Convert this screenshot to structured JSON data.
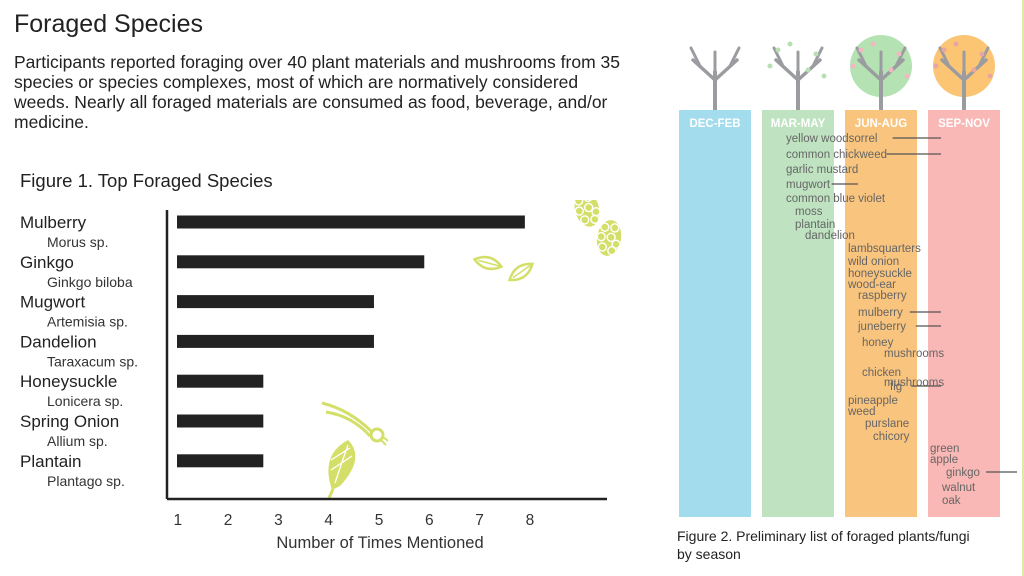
{
  "page": {
    "title": "Foraged Species",
    "intro": "Participants reported foraging over 40 plant materials and mushrooms from 35 species or species complexes, most of which are normatively considered weeds.  Nearly all foraged materials are consumed as food, beverage, and/or medicine."
  },
  "chart_data": [
    {
      "type": "bar",
      "orientation": "horizontal",
      "title": "Figure 1. Top Foraged Species",
      "xlabel": "Number of Times Mentioned",
      "ylabel": "",
      "xlim": [
        0,
        8.8
      ],
      "xticks": [
        "1",
        "2",
        "3",
        "4",
        "5",
        "6",
        "7",
        "8"
      ],
      "grid": false,
      "categories": [
        "Mulberry",
        "Ginkgo",
        "Mugwort",
        "Dandelion",
        "Honeysuckle",
        "Spring Onion",
        "Plantain"
      ],
      "scientific_names": [
        "Morus sp.",
        "Ginkgo biloba",
        "Artemisia sp.",
        "Taraxacum sp.",
        "Lonicera sp.",
        "Allium sp.",
        "Plantago sp."
      ],
      "values": [
        7.9,
        5.9,
        4.9,
        4.9,
        2.7,
        2.7,
        2.7
      ],
      "bar_color": "#222222",
      "decor_color": "#d4df6a"
    },
    {
      "type": "table",
      "caption": "Figure 2. Preliminary list of foraged plants/fungi by season",
      "seasons": [
        {
          "label": "DEC-FEB",
          "color": "#a3dcec",
          "tree": "bare"
        },
        {
          "label": "MAR-MAY",
          "color": "#bfe3c0",
          "tree": "budding"
        },
        {
          "label": "JUN-AUG",
          "color": "#f9c47d",
          "tree": "green"
        },
        {
          "label": "SEP-NOV",
          "color": "#f9b8b6",
          "tree": "orange"
        }
      ],
      "crown_colors": {
        "green": "#b5e2b3",
        "orange": "#fbc574"
      },
      "trunk_color": "#9a9ca0",
      "item_color": "#666666",
      "items": [
        {
          "text": "yellow woodsorrel",
          "season_range": [
            "MAR-MAY",
            "SEP-NOV"
          ]
        },
        {
          "text": "common chickweed",
          "season_range": [
            "MAR-MAY",
            "SEP-NOV"
          ]
        },
        {
          "text": "garlic mustard",
          "season_range": [
            "MAR-MAY",
            "JUN-AUG"
          ]
        },
        {
          "text": "mugwort",
          "season_range": [
            "MAR-MAY",
            "JUN-AUG"
          ]
        },
        {
          "text": "common blue violet",
          "season_range": [
            "MAR-MAY",
            "MAR-MAY"
          ]
        },
        {
          "text": "moss",
          "season_range": [
            "MAR-MAY",
            "MAR-MAY"
          ]
        },
        {
          "text": "plantain",
          "season_range": [
            "MAR-MAY",
            "MAR-MAY"
          ]
        },
        {
          "text": "dandelion",
          "season_range": [
            "MAR-MAY",
            "JUN-AUG"
          ]
        },
        {
          "text": "lambsquarters",
          "season_range": [
            "JUN-AUG",
            "JUN-AUG"
          ]
        },
        {
          "text": "wild onion",
          "season_range": [
            "JUN-AUG",
            "JUN-AUG"
          ]
        },
        {
          "text": "honeysuckle",
          "season_range": [
            "JUN-AUG",
            "JUN-AUG"
          ]
        },
        {
          "text": "wood-ear",
          "season_range": [
            "JUN-AUG",
            "JUN-AUG"
          ]
        },
        {
          "text": "raspberry",
          "season_range": [
            "JUN-AUG",
            "JUN-AUG"
          ]
        },
        {
          "text": "mulberry",
          "season_range": [
            "JUN-AUG",
            "SEP-NOV"
          ]
        },
        {
          "text": "juneberry",
          "season_range": [
            "JUN-AUG",
            "SEP-NOV"
          ]
        },
        {
          "text": "honey mushrooms",
          "season_range": [
            "JUN-AUG",
            "JUN-AUG"
          ]
        },
        {
          "text": "chicken mushrooms",
          "season_range": [
            "JUN-AUG",
            "JUN-AUG"
          ]
        },
        {
          "text": "fig",
          "season_range": [
            "JUN-AUG",
            "SEP-NOV"
          ]
        },
        {
          "text": "pineapple weed",
          "season_range": [
            "JUN-AUG",
            "JUN-AUG"
          ]
        },
        {
          "text": "purslane",
          "season_range": [
            "JUN-AUG",
            "JUN-AUG"
          ]
        },
        {
          "text": "chicory",
          "season_range": [
            "JUN-AUG",
            "JUN-AUG"
          ]
        },
        {
          "text": "green apple",
          "season_range": [
            "SEP-NOV",
            "SEP-NOV"
          ]
        },
        {
          "text": "ginkgo",
          "season_range": [
            "SEP-NOV",
            "SEP-NOV"
          ]
        },
        {
          "text": "walnut",
          "season_range": [
            "SEP-NOV",
            "SEP-NOV"
          ]
        },
        {
          "text": "oak",
          "season_range": [
            "SEP-NOV",
            "SEP-NOV"
          ]
        }
      ]
    }
  ]
}
